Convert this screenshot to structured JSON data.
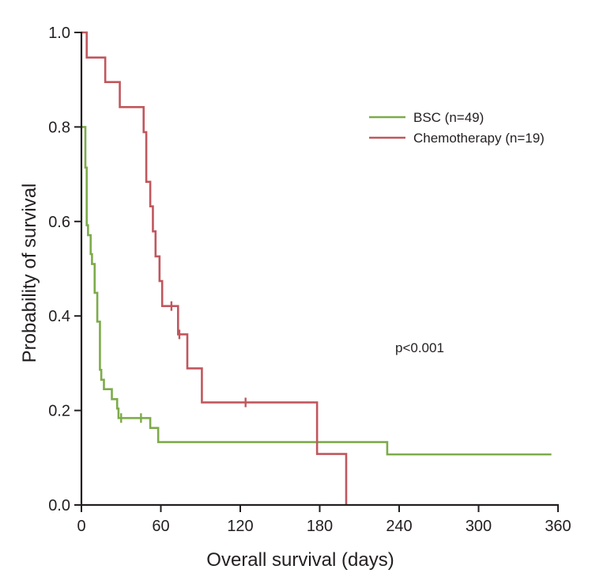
{
  "chart_data": {
    "type": "line",
    "subtype": "kaplan-meier",
    "title": "",
    "xlabel": "Overall survival (days)",
    "ylabel": "Probability of survival",
    "xlim": [
      0,
      360
    ],
    "ylim": [
      0,
      1.0
    ],
    "xticks": [
      0,
      60,
      120,
      180,
      240,
      300,
      360
    ],
    "xtick_labels": [
      "0",
      "60",
      "120",
      "180",
      "240",
      "300",
      "360"
    ],
    "yticks": [
      0,
      0.2,
      0.4,
      0.6,
      0.8,
      1.0
    ],
    "ytick_labels": [
      "0.0",
      "0.2",
      "0.4",
      "0.6",
      "0.8",
      "1.0"
    ],
    "grid": false,
    "legend_position": "top-right",
    "annotation": "p<0.001",
    "series": [
      {
        "name": "BSC (n=49)",
        "color": "#7dab4a",
        "x": [
          0,
          3,
          4,
          5,
          7,
          8,
          10,
          12,
          14,
          15,
          17,
          19,
          23,
          27,
          28,
          30,
          45,
          52,
          58,
          231,
          355
        ],
        "y": [
          0.8,
          0.714,
          0.592,
          0.571,
          0.531,
          0.51,
          0.449,
          0.388,
          0.286,
          0.265,
          0.245,
          0.245,
          0.224,
          0.204,
          0.184,
          0.184,
          0.184,
          0.163,
          0.133,
          0.107,
          0.107
        ],
        "censored": [
          {
            "x": 30,
            "y": 0.184
          },
          {
            "x": 45,
            "y": 0.184
          }
        ]
      },
      {
        "name": "Chemotherapy (n=19)",
        "color": "#c0575d",
        "x": [
          0,
          4,
          18,
          29,
          47,
          49,
          52,
          54,
          56,
          59,
          61,
          73,
          76,
          80,
          91,
          178,
          200
        ],
        "y": [
          1.0,
          0.947,
          0.895,
          0.842,
          0.789,
          0.684,
          0.632,
          0.579,
          0.526,
          0.474,
          0.421,
          0.361,
          0.361,
          0.289,
          0.217,
          0.108,
          0.0
        ],
        "censored": [
          {
            "x": 68,
            "y": 0.421
          },
          {
            "x": 74,
            "y": 0.361
          },
          {
            "x": 124,
            "y": 0.217
          }
        ]
      }
    ]
  }
}
